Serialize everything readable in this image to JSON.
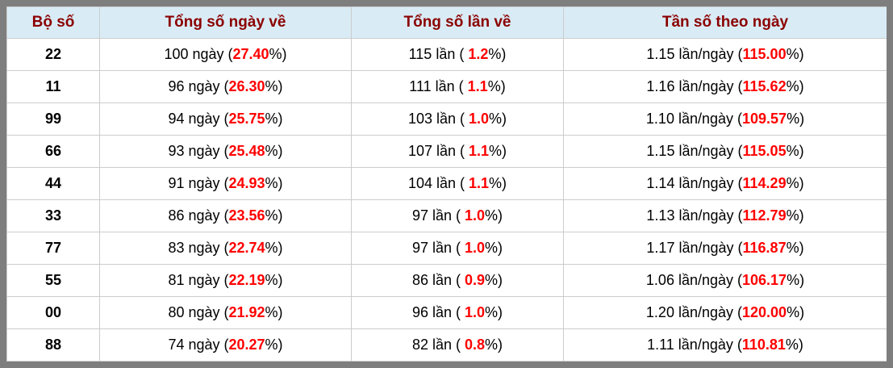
{
  "colors": {
    "frame_border": "#7e7e7e",
    "header_background": "#d9ecf6",
    "header_text": "#8b0000",
    "percent_highlight": "#ff0000",
    "cell_divider": "#cccccc",
    "body_text": "#000000"
  },
  "table": {
    "columns": [
      {
        "key": "pair",
        "label": "Bộ số"
      },
      {
        "key": "days",
        "label": "Tổng số ngày về"
      },
      {
        "key": "times",
        "label": "Tổng số lần về"
      },
      {
        "key": "freq",
        "label": "Tần số theo ngày"
      }
    ],
    "rows": [
      {
        "pair": "22",
        "days": [
          "100 ngày (",
          "27.40",
          "%)"
        ],
        "times": [
          "115 lần ( ",
          "1.2",
          "%)"
        ],
        "freq": [
          "1.15 lần/ngày (",
          "115.00",
          "%)"
        ]
      },
      {
        "pair": "11",
        "days": [
          "96 ngày (",
          "26.30",
          "%)"
        ],
        "times": [
          "111 lần ( ",
          "1.1",
          "%)"
        ],
        "freq": [
          "1.16 lần/ngày (",
          "115.62",
          "%)"
        ]
      },
      {
        "pair": "99",
        "days": [
          "94 ngày (",
          "25.75",
          "%)"
        ],
        "times": [
          "103 lần ( ",
          "1.0",
          "%)"
        ],
        "freq": [
          "1.10 lần/ngày (",
          "109.57",
          "%)"
        ]
      },
      {
        "pair": "66",
        "days": [
          "93 ngày (",
          "25.48",
          "%)"
        ],
        "times": [
          "107 lần ( ",
          "1.1",
          "%)"
        ],
        "freq": [
          "1.15 lần/ngày (",
          "115.05",
          "%)"
        ]
      },
      {
        "pair": "44",
        "days": [
          "91 ngày (",
          "24.93",
          "%)"
        ],
        "times": [
          "104 lần ( ",
          "1.1",
          "%)"
        ],
        "freq": [
          "1.14 lần/ngày (",
          "114.29",
          "%)"
        ]
      },
      {
        "pair": "33",
        "days": [
          "86 ngày (",
          "23.56",
          "%)"
        ],
        "times": [
          "97 lần ( ",
          "1.0",
          "%)"
        ],
        "freq": [
          "1.13 lần/ngày (",
          "112.79",
          "%)"
        ]
      },
      {
        "pair": "77",
        "days": [
          "83 ngày (",
          "22.74",
          "%)"
        ],
        "times": [
          "97 lần ( ",
          "1.0",
          "%)"
        ],
        "freq": [
          "1.17 lần/ngày (",
          "116.87",
          "%)"
        ]
      },
      {
        "pair": "55",
        "days": [
          "81 ngày (",
          "22.19",
          "%)"
        ],
        "times": [
          "86 lần ( ",
          "0.9",
          "%)"
        ],
        "freq": [
          "1.06 lần/ngày (",
          "106.17",
          "%)"
        ]
      },
      {
        "pair": "00",
        "days": [
          "80 ngày (",
          "21.92",
          "%)"
        ],
        "times": [
          "96 lần ( ",
          "1.0",
          "%)"
        ],
        "freq": [
          "1.20 lần/ngày (",
          "120.00",
          "%)"
        ]
      },
      {
        "pair": "88",
        "days": [
          "74 ngày (",
          "20.27",
          "%)"
        ],
        "times": [
          "82 lần ( ",
          "0.8",
          "%)"
        ],
        "freq": [
          "1.11 lần/ngày (",
          "110.81",
          "%)"
        ]
      }
    ]
  }
}
